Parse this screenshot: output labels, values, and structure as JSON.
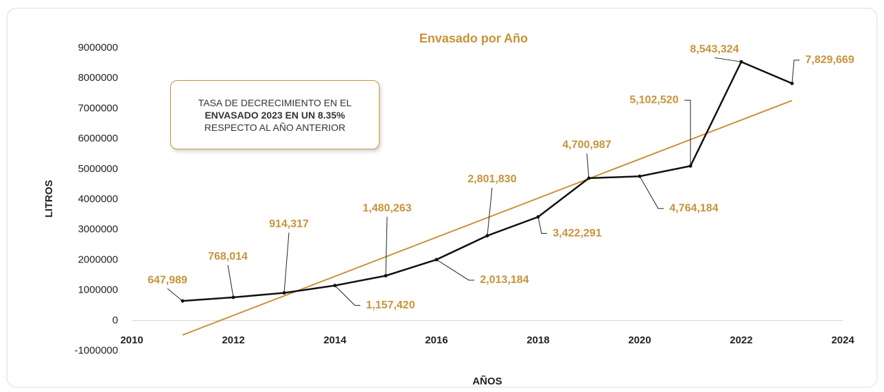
{
  "chart_data": {
    "type": "line",
    "title": "Envasado por Año",
    "x_label": "AÑOS",
    "y_label": "LITROS",
    "x": [
      2011,
      2012,
      2013,
      2014,
      2015,
      2016,
      2017,
      2018,
      2019,
      2020,
      2021,
      2022,
      2023
    ],
    "series": [
      {
        "name": "Envasado",
        "color": "#111111",
        "values": [
          647989,
          768014,
          914317,
          1157420,
          1480263,
          2013184,
          2801830,
          3422291,
          4700987,
          4764184,
          5102520,
          8543324,
          7829669
        ],
        "value_labels": [
          "647,989",
          "768,014",
          "914,317",
          "1,157,420",
          "1,480,263",
          "2,013,184",
          "2,801,830",
          "3,422,291",
          "4,700,987",
          "4,764,184",
          "5,102,520",
          "8,543,324",
          "7,829,669"
        ]
      }
    ],
    "label_color": "#c8923a",
    "trendline": {
      "color": "#c8923a"
    },
    "xlim": [
      2010,
      2024
    ],
    "xticks": [
      2010,
      2012,
      2014,
      2016,
      2018,
      2020,
      2022,
      2024
    ],
    "ylim": [
      -1000000,
      9000000
    ],
    "yticks": [
      -1000000,
      0,
      1000000,
      2000000,
      3000000,
      4000000,
      5000000,
      6000000,
      7000000,
      8000000,
      9000000
    ],
    "annotation": [
      "TASA DE DECRECIMIENTO EN EL",
      "ENVASADO 2023 EN UN 8.35%",
      "RESPECTO AL AÑO ANTERIOR"
    ]
  }
}
